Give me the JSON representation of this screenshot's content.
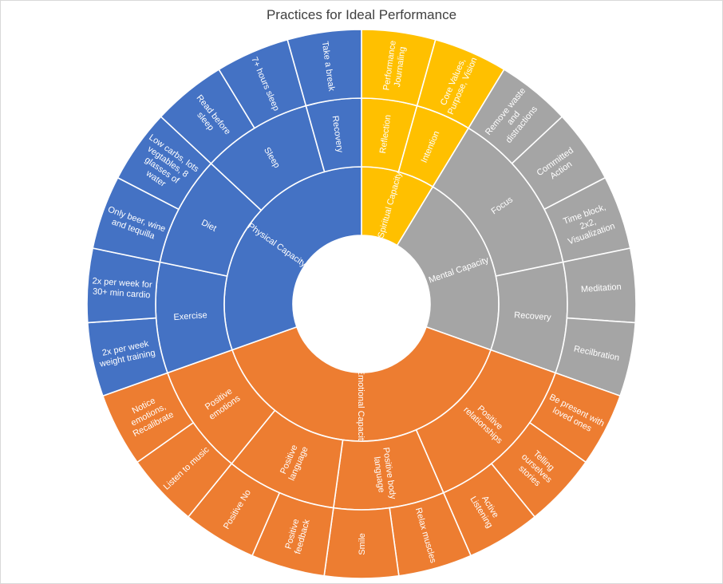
{
  "chart_data": {
    "type": "sunburst",
    "title": "Practices for Ideal Performance",
    "colors": {
      "Spiritual Capacity": "#ffc000",
      "Mental Capacity": "#a5a5a5",
      "Emotional Capacity": "#ed7d31",
      "Physical Capacity": "#4472c4"
    },
    "root": [
      {
        "name": "Spiritual Capacity",
        "children": [
          {
            "name": "Reflection",
            "children": [
              {
                "name": "Performance Journaling",
                "value": 1
              }
            ]
          },
          {
            "name": "Intention",
            "children": [
              {
                "name": "Core Values, Purpose, Vision",
                "value": 1
              }
            ]
          }
        ]
      },
      {
        "name": "Mental Capacity",
        "children": [
          {
            "name": "Focus",
            "children": [
              {
                "name": "Remove waste and distractions",
                "value": 1
              },
              {
                "name": "Committed Action",
                "value": 1
              },
              {
                "name": "Time block, 2x2, Visualization",
                "value": 1
              }
            ]
          },
          {
            "name": "Recovery",
            "children": [
              {
                "name": "Meditation",
                "value": 1
              },
              {
                "name": "Recilbration",
                "value": 1
              }
            ]
          }
        ]
      },
      {
        "name": "Emotional Capacity",
        "children": [
          {
            "name": "Positive relationships",
            "children": [
              {
                "name": "Be present with loved ones",
                "value": 1
              },
              {
                "name": "Telling ourselves stories",
                "value": 1
              },
              {
                "name": "Active Listening",
                "value": 1
              }
            ]
          },
          {
            "name": "Positive body language",
            "children": [
              {
                "name": "Relax muscles",
                "value": 1
              },
              {
                "name": "Smile",
                "value": 1
              }
            ]
          },
          {
            "name": "Positive language",
            "children": [
              {
                "name": "Positive feedback",
                "value": 1
              },
              {
                "name": "Positive No",
                "value": 1
              }
            ]
          },
          {
            "name": "Positive emotions",
            "children": [
              {
                "name": "Listen to music",
                "value": 1
              },
              {
                "name": "Notice emotions, Recalibrate",
                "value": 1
              }
            ]
          }
        ]
      },
      {
        "name": "Physical Capacity",
        "children": [
          {
            "name": "Exercise",
            "children": [
              {
                "name": "2x per week weight training",
                "value": 1
              },
              {
                "name": "2x per week for 30+ min cardio",
                "value": 1
              }
            ]
          },
          {
            "name": "Diet",
            "children": [
              {
                "name": "Only beer, wine and tequilla",
                "value": 1
              },
              {
                "name": "Low carbs, lots vegtables, 8 glasses of water",
                "value": 1
              }
            ]
          },
          {
            "name": "Sleep",
            "children": [
              {
                "name": "Read before sleep",
                "value": 1
              },
              {
                "name": "7+ hours sleep",
                "value": 1
              }
            ]
          },
          {
            "name": "Recovery",
            "children": [
              {
                "name": "Take a break",
                "value": 1
              }
            ]
          }
        ]
      }
    ]
  }
}
